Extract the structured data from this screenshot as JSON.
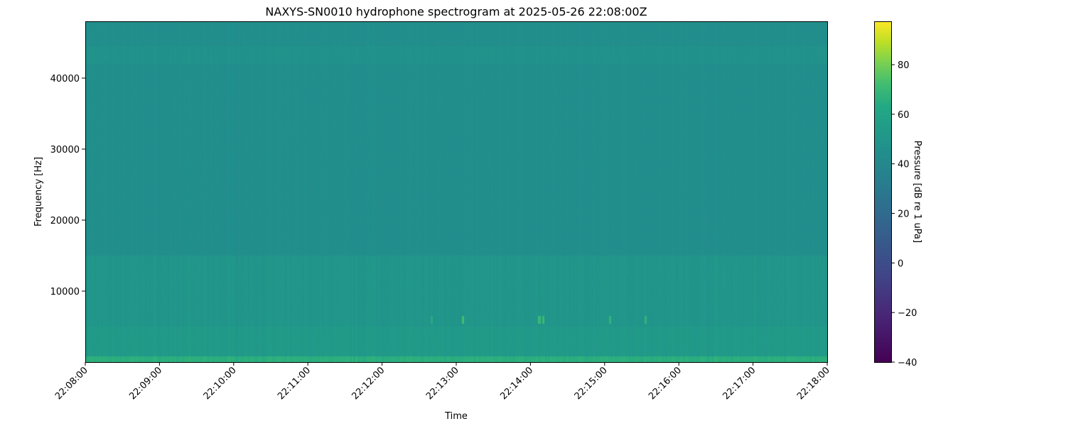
{
  "chart_data": {
    "type": "heatmap",
    "title": "NAXYS-SN0010 hydrophone spectrogram at 2025-05-26 22:08:00Z",
    "xlabel": "Time",
    "ylabel": "Frequency [Hz]",
    "colorbar_label": "Pressure [dB re 1 uPa]",
    "colormap": "viridis",
    "xlim": [
      "22:08:00",
      "22:18:00"
    ],
    "ylim": [
      0,
      48000
    ],
    "clim": [
      -40,
      97.5
    ],
    "x_ticks": [
      "22:08:00",
      "22:09:00",
      "22:10:00",
      "22:11:00",
      "22:12:00",
      "22:13:00",
      "22:14:00",
      "22:15:00",
      "22:16:00",
      "22:17:00",
      "22:18:00"
    ],
    "y_ticks": [
      10000,
      20000,
      30000,
      40000
    ],
    "y_tick_labels": [
      "10000",
      "20000",
      "30000",
      "40000"
    ],
    "colorbar_ticks": [
      -40,
      -20,
      0,
      20,
      40,
      60,
      80
    ],
    "colorbar_tick_labels": [
      "−40",
      "−20",
      "0",
      "20",
      "40",
      "60",
      "80"
    ],
    "band_levels_db": [
      {
        "freq_hz": [
          0,
          800
        ],
        "db": 66
      },
      {
        "freq_hz": [
          800,
          5000
        ],
        "db": 53
      },
      {
        "freq_hz": [
          5000,
          15000
        ],
        "db": 50
      },
      {
        "freq_hz": [
          15000,
          42000
        ],
        "db": 45
      },
      {
        "freq_hz": [
          42000,
          44500
        ],
        "db": 48
      },
      {
        "freq_hz": [
          44500,
          48000
        ],
        "db": 45
      }
    ],
    "tonal_events": [
      {
        "time": "22:13:05",
        "freq_hz": 6000,
        "db": 72
      },
      {
        "time": "22:14:07",
        "freq_hz": 6000,
        "db": 70
      },
      {
        "time": "22:14:10",
        "freq_hz": 6000,
        "db": 70
      },
      {
        "time": "22:15:04",
        "freq_hz": 6000,
        "db": 68
      },
      {
        "time": "22:15:33",
        "freq_hz": 6000,
        "db": 68
      },
      {
        "time": "22:12:40",
        "freq_hz": 6000,
        "db": 64
      }
    ],
    "grid": false
  }
}
